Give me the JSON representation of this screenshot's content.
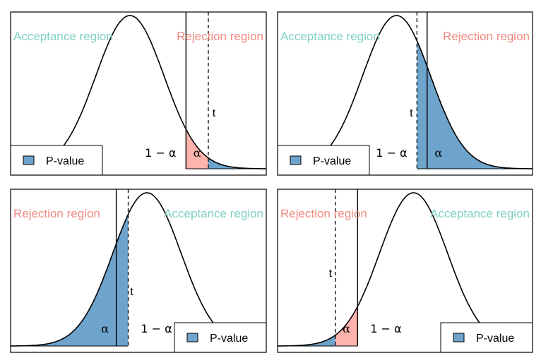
{
  "page": {
    "background": "#ffffff"
  },
  "colors": {
    "pvalue_fill": "#6ea3cc",
    "alpha_fill": "#ffb3ad",
    "acceptance_label": "#7fcfc4",
    "rejection_label": "#f08a80",
    "curve": "#000000"
  },
  "labels": {
    "acceptance": "Acceptance region",
    "rejection": "Rejection region",
    "alpha": "α",
    "one_minus_alpha": "1 − α",
    "t": "t",
    "legend": "P-value"
  },
  "chart_data": [
    {
      "type": "area",
      "distribution": "normal density",
      "tail": "right",
      "xlim": [
        -3.5,
        4.0
      ],
      "mean": 0,
      "sd": 1,
      "critical_value": 1.645,
      "test_statistic": 2.3,
      "case": "t beyond critical value (reject)",
      "legend": [
        "P-value"
      ],
      "legend_position": "bottom-left",
      "region_labels": {
        "left": "Acceptance region",
        "right": "Rejection region"
      },
      "annotations": [
        "1 − α",
        "α",
        "t"
      ]
    },
    {
      "type": "area",
      "distribution": "normal density",
      "tail": "right",
      "xlim": [
        -3.5,
        4.0
      ],
      "mean": 0,
      "sd": 1,
      "critical_value": 0.9,
      "test_statistic": 0.6,
      "case": "t inside acceptance region",
      "legend": [
        "P-value"
      ],
      "legend_position": "bottom-left",
      "region_labels": {
        "left": "Acceptance region",
        "right": "Rejection region"
      },
      "annotations": [
        "1 − α",
        "α",
        "t"
      ]
    },
    {
      "type": "area",
      "distribution": "normal density",
      "tail": "left",
      "xlim": [
        -4.0,
        3.5
      ],
      "mean": 0,
      "sd": 1,
      "critical_value": -0.9,
      "test_statistic": -0.55,
      "case": "t inside acceptance region",
      "legend": [
        "P-value"
      ],
      "legend_position": "bottom-right",
      "region_labels": {
        "left": "Rejection region",
        "right": "Acceptance region"
      },
      "annotations": [
        "α",
        "1 − α",
        "t"
      ]
    },
    {
      "type": "area",
      "distribution": "normal density",
      "tail": "left",
      "xlim": [
        -4.0,
        3.5
      ],
      "mean": 0,
      "sd": 1,
      "critical_value": -1.645,
      "test_statistic": -2.3,
      "case": "t beyond critical value (reject)",
      "legend": [
        "P-value"
      ],
      "legend_position": "bottom-right",
      "region_labels": {
        "left": "Rejection region",
        "right": "Acceptance region"
      },
      "annotations": [
        "α",
        "1 − α",
        "t"
      ]
    }
  ]
}
